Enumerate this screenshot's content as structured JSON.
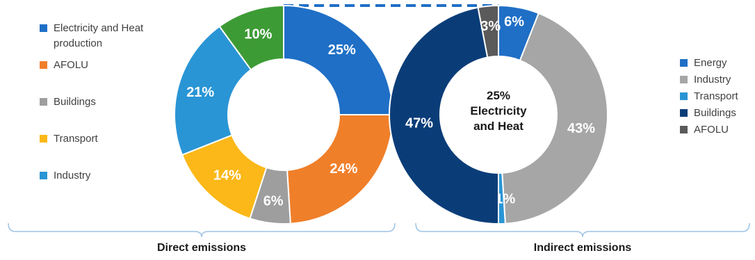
{
  "chart_data": [
    {
      "type": "pie",
      "style": "donut",
      "group_label": "Direct emissions",
      "legend_position": "left",
      "slices": [
        {
          "name": "Electricity and Heat production",
          "value": 25,
          "label": "25%",
          "color": "#1f6fc6"
        },
        {
          "name": "AFOLU",
          "value": 24,
          "label": "24%",
          "color": "#f07f2a"
        },
        {
          "name": "Buildings",
          "value": 6,
          "label": "6%",
          "color": "#9e9e9e"
        },
        {
          "name": "Transport",
          "value": 14,
          "label": "14%",
          "color": "#fbb818"
        },
        {
          "name": "Industry",
          "value": 21,
          "label": "21%",
          "color": "#2a95d5"
        },
        {
          "name": "",
          "value": 10,
          "label": "10%",
          "color": "#3d9b35"
        }
      ],
      "legend": [
        {
          "label": "Electricity and Heat",
          "label2": "production",
          "color": "#1f6fc6"
        },
        {
          "label": "AFOLU",
          "color": "#f07f2a"
        },
        {
          "label": "Buildings",
          "color": "#9e9e9e"
        },
        {
          "label": "Transport",
          "color": "#fbb818"
        },
        {
          "label": "Industry",
          "color": "#2a95d5"
        }
      ]
    },
    {
      "type": "pie",
      "style": "donut",
      "group_label": "Indirect emissions",
      "legend_position": "right",
      "center_text": [
        "25%",
        "Electricity",
        "and Heat"
      ],
      "slices": [
        {
          "name": "Energy",
          "value": 6,
          "label": "6%",
          "color": "#1f6fc6"
        },
        {
          "name": "Industry",
          "value": 43,
          "label": "43%",
          "color": "#a6a6a6"
        },
        {
          "name": "Transport",
          "value": 1,
          "label": "1%",
          "color": "#2a95d5"
        },
        {
          "name": "Buildings",
          "value": 47,
          "label": "47%",
          "color": "#0a3d78"
        },
        {
          "name": "AFOLU",
          "value": 3,
          "label": "3%",
          "color": "#5a5a5a"
        }
      ],
      "legend": [
        {
          "label": "Energy",
          "color": "#1f6fc6"
        },
        {
          "label": "Industry",
          "color": "#a6a6a6"
        },
        {
          "label": "Transport",
          "color": "#2a95d5"
        },
        {
          "label": "Buildings",
          "color": "#0a3d78"
        },
        {
          "label": "AFOLU",
          "color": "#5a5a5a"
        }
      ]
    }
  ],
  "connector_color": "#1f6fc6",
  "bracket_color": "#9dc3e6"
}
